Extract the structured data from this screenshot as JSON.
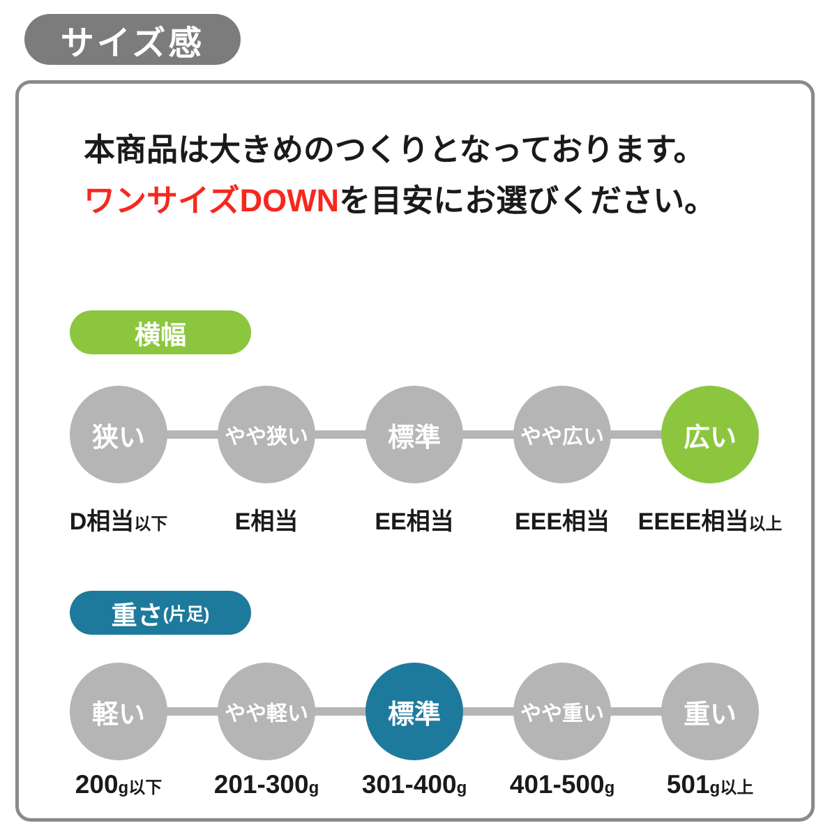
{
  "page": {
    "title_badge": "サイズ感",
    "description_line1": "本商品は大きめのつくりとなっております。",
    "description_line2_highlight": "ワンサイズDOWN",
    "description_line2_rest": "を目安にお選びください。"
  },
  "colors": {
    "badge_gray": "#7c7c7c",
    "border_gray": "#8a8a8a",
    "circle_gray": "#b5b5b5",
    "green": "#8cc63f",
    "teal": "#1e7a9c",
    "red": "#f5281e"
  },
  "width_section": {
    "badge_label": "横幅",
    "selected_index": 4,
    "items": [
      {
        "circle": "狭い",
        "label_main": "D相当",
        "label_suffix": "以下"
      },
      {
        "circle": "やや狭い",
        "label_main": "E相当",
        "label_suffix": ""
      },
      {
        "circle": "標準",
        "label_main": "EE相当",
        "label_suffix": ""
      },
      {
        "circle": "やや広い",
        "label_main": "EEE相当",
        "label_suffix": ""
      },
      {
        "circle": "広い",
        "label_main": "EEEE相当",
        "label_suffix": "以上"
      }
    ]
  },
  "weight_section": {
    "badge_label": "重さ",
    "badge_sublabel": "(片足)",
    "selected_index": 2,
    "items": [
      {
        "circle": "軽い",
        "label_main": "200",
        "label_suffix": "g以下"
      },
      {
        "circle": "やや軽い",
        "label_main": "201-300",
        "label_suffix": "g"
      },
      {
        "circle": "標準",
        "label_main": "301-400",
        "label_suffix": "g"
      },
      {
        "circle": "やや重い",
        "label_main": "401-500",
        "label_suffix": "g"
      },
      {
        "circle": "重い",
        "label_main": "501",
        "label_suffix": "g以上"
      }
    ]
  }
}
